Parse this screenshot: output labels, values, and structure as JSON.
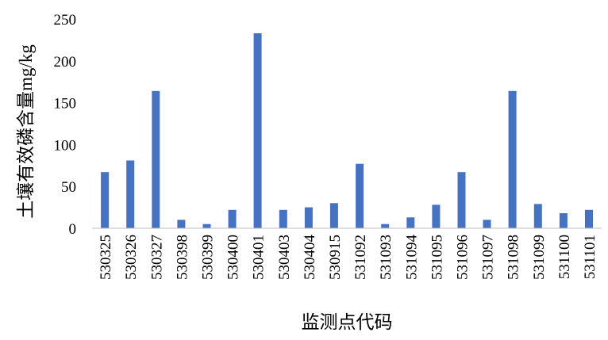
{
  "chart_data": {
    "type": "bar",
    "title": "",
    "xlabel": "监测点代码",
    "ylabel": "土壤有效磷含量mg/kg",
    "ylim": [
      0,
      250
    ],
    "yticks": [
      0,
      50,
      100,
      150,
      200,
      250
    ],
    "grid": false,
    "color": "#4472C4",
    "categories": [
      "530325",
      "530326",
      "530327",
      "530398",
      "530399",
      "530400",
      "530401",
      "530403",
      "530404",
      "530915",
      "531092",
      "531093",
      "531094",
      "531095",
      "531096",
      "531097",
      "531098",
      "531099",
      "531100",
      "531101"
    ],
    "values": [
      67,
      81,
      164,
      10,
      5,
      22,
      233,
      22,
      25,
      30,
      77,
      5,
      13,
      28,
      67,
      10,
      164,
      29,
      18,
      22
    ]
  }
}
